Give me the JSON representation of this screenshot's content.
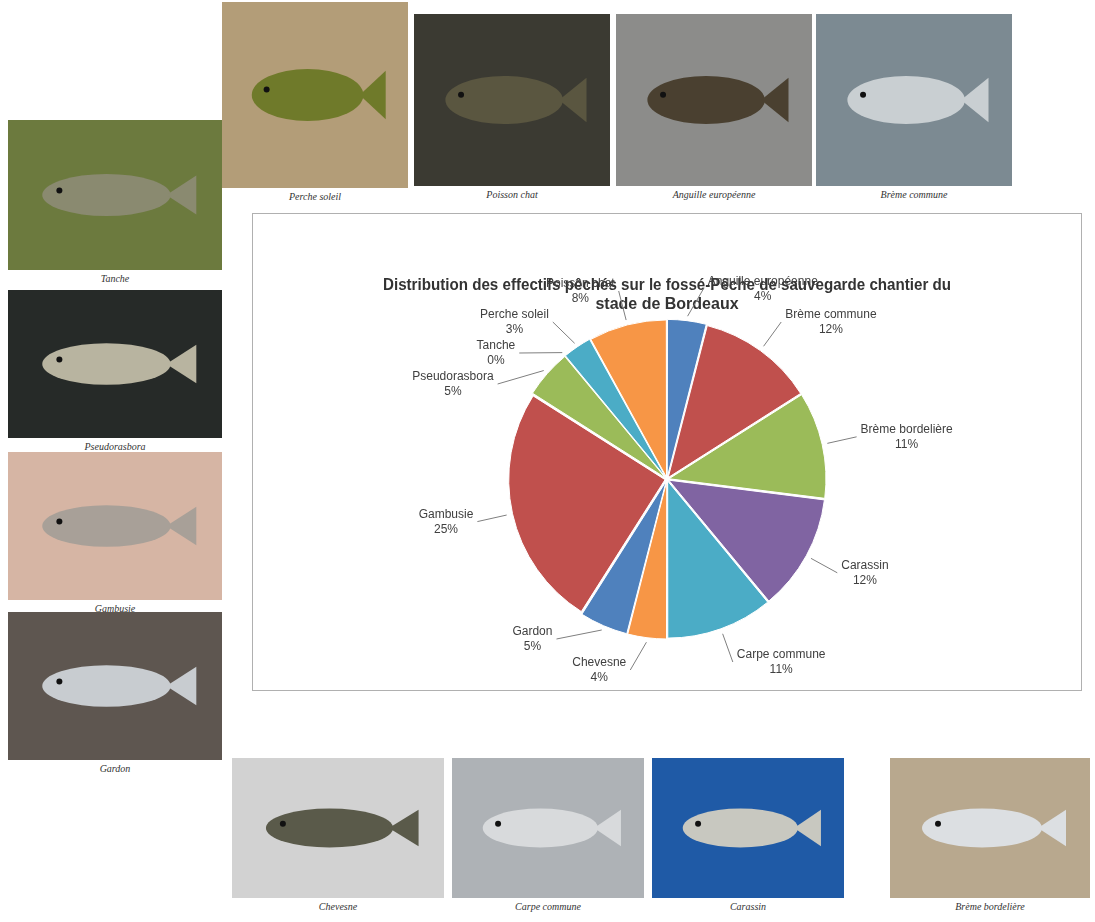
{
  "chart_data": {
    "type": "pie",
    "title": "Distribution des effectifs pêchés sur le fossé-Pêche de sauvegarde chantier du stade de Bordeaux",
    "categories": [
      "Anguille européenne",
      "Brème commune",
      "Brème bordelière",
      "Carassin",
      "Carpe commune",
      "Chevesne",
      "Gardon",
      "Gambusie",
      "Pseudorasbora",
      "Tanche",
      "Perche soleil",
      "Poisson chat"
    ],
    "values": [
      4,
      12,
      11,
      12,
      11,
      4,
      5,
      25,
      5,
      0,
      3,
      8
    ],
    "value_labels": [
      "4%",
      "12%",
      "11%",
      "12%",
      "11%",
      "4%",
      "5%",
      "25%",
      "5%",
      "0%",
      "3%",
      "8%"
    ],
    "colors": [
      "#4f81bd",
      "#c0504d",
      "#9bbb59",
      "#8064a2",
      "#4bacc6",
      "#f79646",
      "#4f81bd",
      "#c0504d",
      "#9bbb59",
      "#8064a2",
      "#4bacc6",
      "#f79646"
    ],
    "data_labels": true,
    "legend": false
  },
  "photos": [
    "Perche soleil",
    "Poisson chat",
    "Anguille européenne",
    "Brème commune",
    "Tanche",
    "Pseudorasbora",
    "Gambusie",
    "Gardon",
    "Chevesne",
    "Carpe commune",
    "Carassin",
    "Brème bordelière"
  ]
}
